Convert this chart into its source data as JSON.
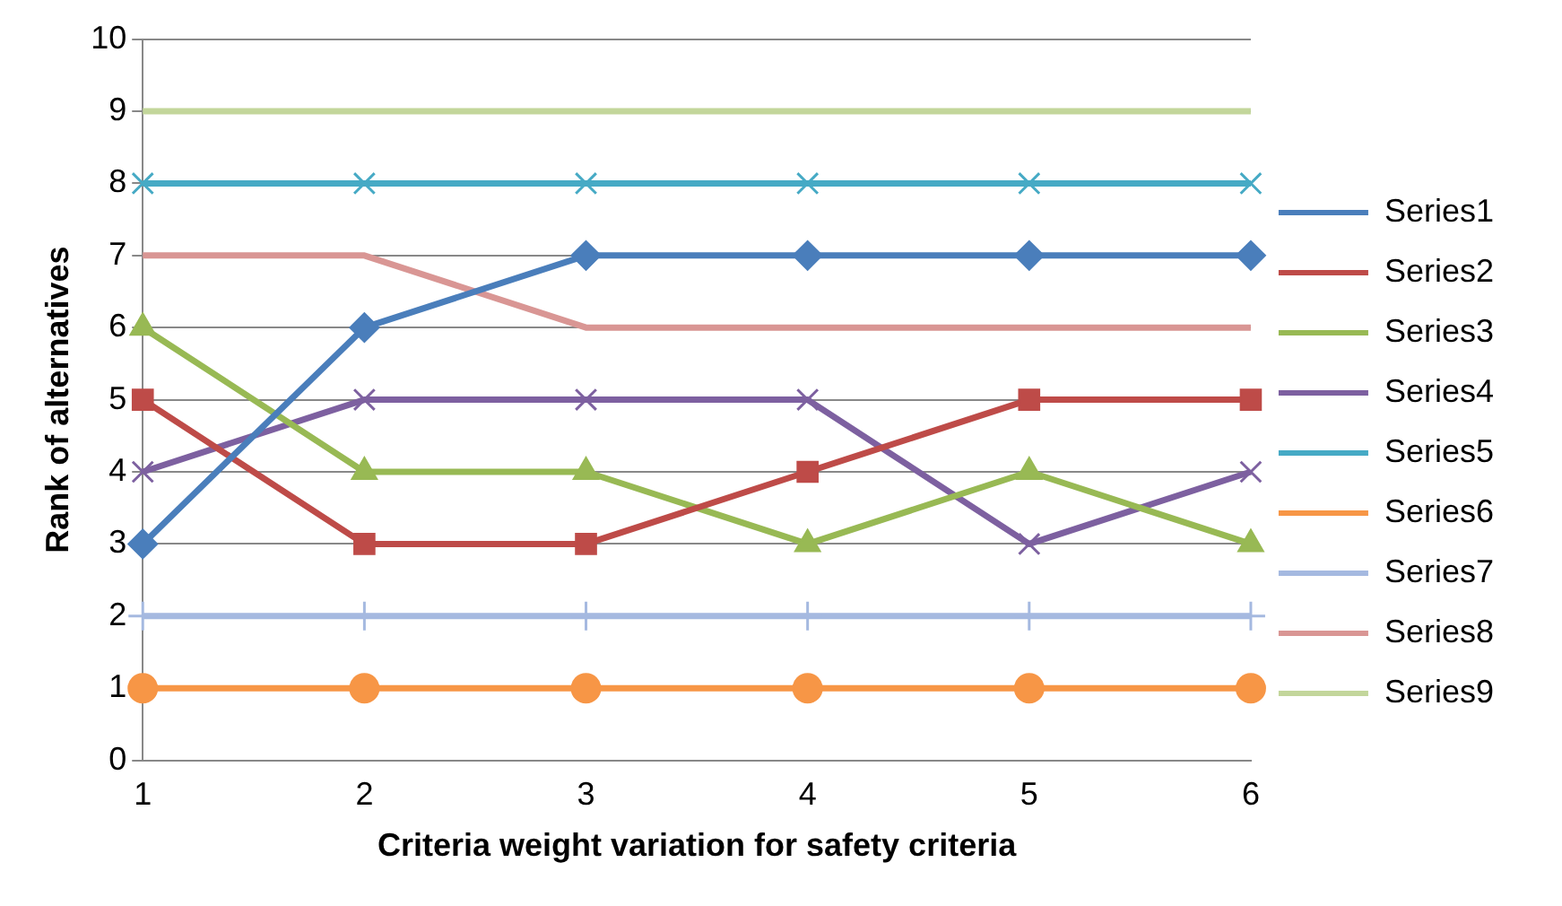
{
  "chart_data": {
    "type": "line",
    "xlabel": "Criteria weight variation for safety criteria",
    "ylabel": "Rank of alternatives",
    "categories": [
      "1",
      "2",
      "3",
      "4",
      "5",
      "6"
    ],
    "ylim": [
      0,
      10
    ],
    "yticks": [
      0,
      1,
      2,
      3,
      4,
      5,
      6,
      7,
      8,
      9,
      10
    ],
    "grid": "y",
    "legend": "right",
    "series": [
      {
        "name": "Series1",
        "color": "#4a7ebb",
        "marker": "diamond",
        "values": [
          3,
          6,
          7,
          7,
          7,
          7
        ]
      },
      {
        "name": "Series2",
        "color": "#be4b48",
        "marker": "square",
        "values": [
          5,
          3,
          3,
          4,
          5,
          5
        ]
      },
      {
        "name": "Series3",
        "color": "#98b954",
        "marker": "triangle",
        "values": [
          6,
          4,
          4,
          3,
          4,
          3
        ]
      },
      {
        "name": "Series4",
        "color": "#7d60a0",
        "marker": "cross",
        "values": [
          4,
          5,
          5,
          5,
          3,
          4
        ]
      },
      {
        "name": "Series5",
        "color": "#46aac5",
        "marker": "cross",
        "values": [
          8,
          8,
          8,
          8,
          8,
          8
        ]
      },
      {
        "name": "Series6",
        "color": "#f79646",
        "marker": "circle",
        "values": [
          1,
          1,
          1,
          1,
          1,
          1
        ]
      },
      {
        "name": "Series7",
        "color": "#a5b9e0",
        "marker": "plus",
        "values": [
          2,
          2,
          2,
          2,
          2,
          2
        ]
      },
      {
        "name": "Series8",
        "color": "#d99694",
        "marker": "none",
        "values": [
          7,
          7,
          6,
          6,
          6,
          6
        ]
      },
      {
        "name": "Series9",
        "color": "#c3d69b",
        "marker": "none",
        "values": [
          9,
          9,
          9,
          9,
          9,
          9
        ]
      }
    ]
  }
}
